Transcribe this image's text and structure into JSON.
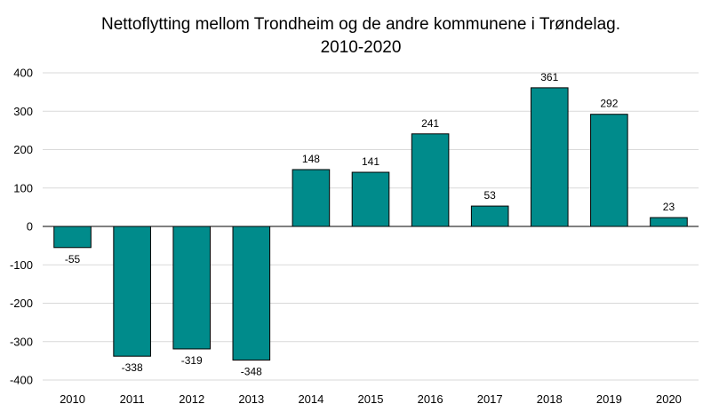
{
  "chart_data": {
    "type": "bar",
    "title_line1": "Nettoflytting mellom Trondheim og de andre kommunene  i Trøndelag.",
    "title_line2": "2010-2020",
    "categories": [
      "2010",
      "2011",
      "2012",
      "2013",
      "2014",
      "2015",
      "2016",
      "2017",
      "2018",
      "2019",
      "2020"
    ],
    "values": [
      -55,
      -338,
      -319,
      -348,
      148,
      141,
      241,
      53,
      361,
      292,
      23
    ],
    "ylim": [
      -400,
      400
    ],
    "yticks": [
      400,
      300,
      200,
      100,
      0,
      -100,
      -200,
      -300,
      -400
    ],
    "grid": true,
    "legend": "none",
    "colors": {
      "bar": "#008b8b",
      "bar_stroke": "#000000"
    }
  }
}
